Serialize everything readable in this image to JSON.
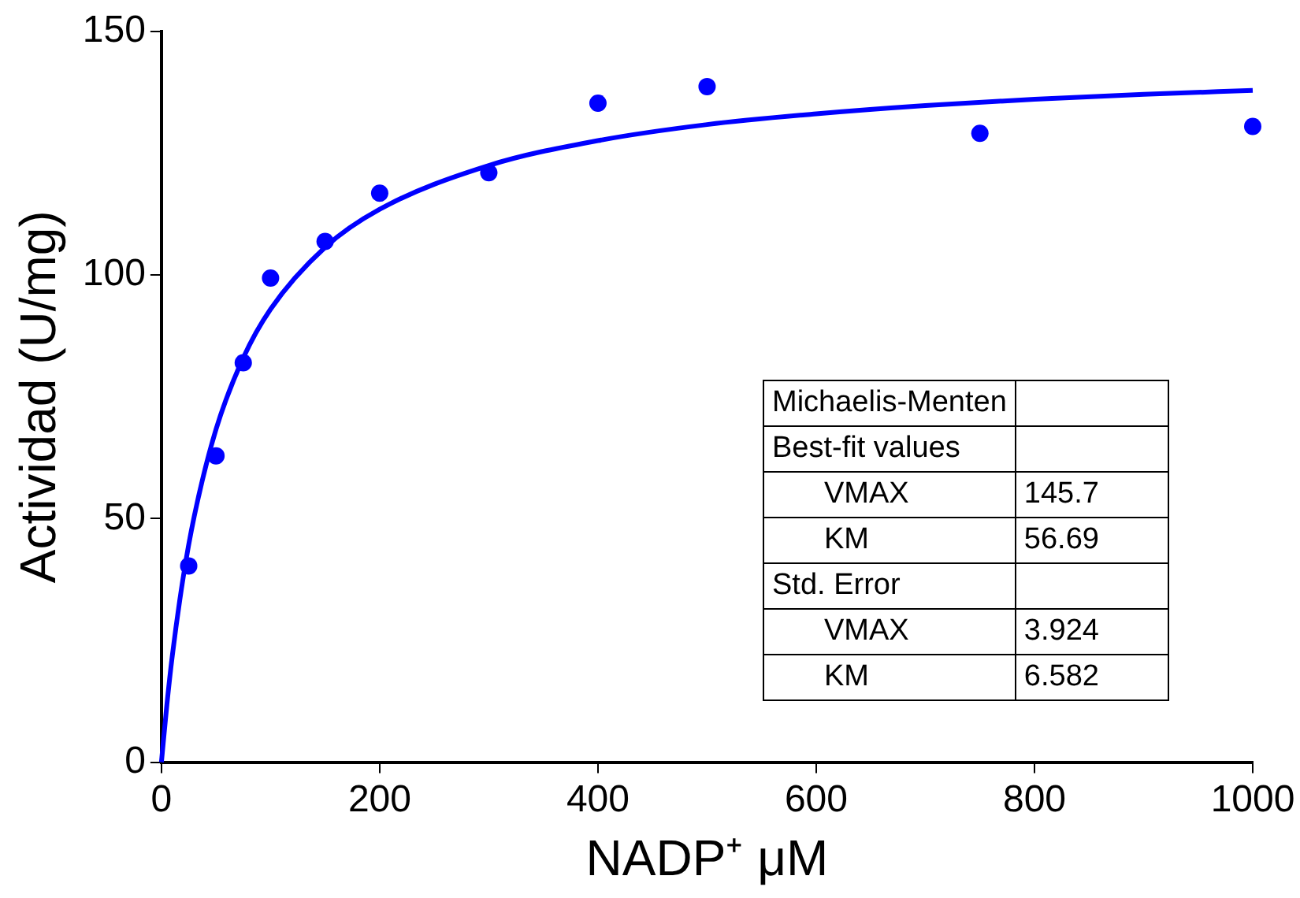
{
  "chart_data": {
    "type": "scatter",
    "xlabel": "NADP⁺ μM",
    "ylabel": "Actividad (U/mg)",
    "xlim": [
      0,
      1000
    ],
    "xticks": [
      0,
      200,
      400,
      600,
      800,
      1000
    ],
    "ylim": [
      0,
      150
    ],
    "yticks": [
      0,
      50,
      100,
      150
    ],
    "grid": false,
    "legend": false,
    "series": [
      {
        "type": "scatter",
        "marker": "circle",
        "color": "#0000ff",
        "x": [
          25,
          50,
          75,
          100,
          150,
          200,
          300,
          400,
          500,
          750,
          1000
        ],
        "values": [
          40.3,
          62.9,
          82,
          99.4,
          106.9,
          116.8,
          121,
          135.3,
          138.7,
          129.1,
          130.5
        ]
      },
      {
        "type": "line",
        "marker": "none",
        "line_style": "solid",
        "color": "#0000ff",
        "x": [
          0,
          5,
          10,
          20,
          30,
          50,
          75,
          100,
          150,
          200,
          300,
          400,
          500,
          600,
          700,
          800,
          900,
          1000
        ],
        "values": [
          0,
          11.8,
          21.9,
          38,
          50.4,
          68.3,
          83,
          93,
          105.7,
          113.5,
          122.5,
          127.6,
          130.9,
          133.1,
          134.8,
          136.1,
          137.1,
          137.9
        ]
      }
    ],
    "annotations": [
      "Michaelis-Menten",
      "Best-fit values",
      "VMAX\t145.7",
      "KM\t56.69",
      "Std. Error",
      "VMAX\t3.924",
      "KM\t6.582"
    ]
  }
}
